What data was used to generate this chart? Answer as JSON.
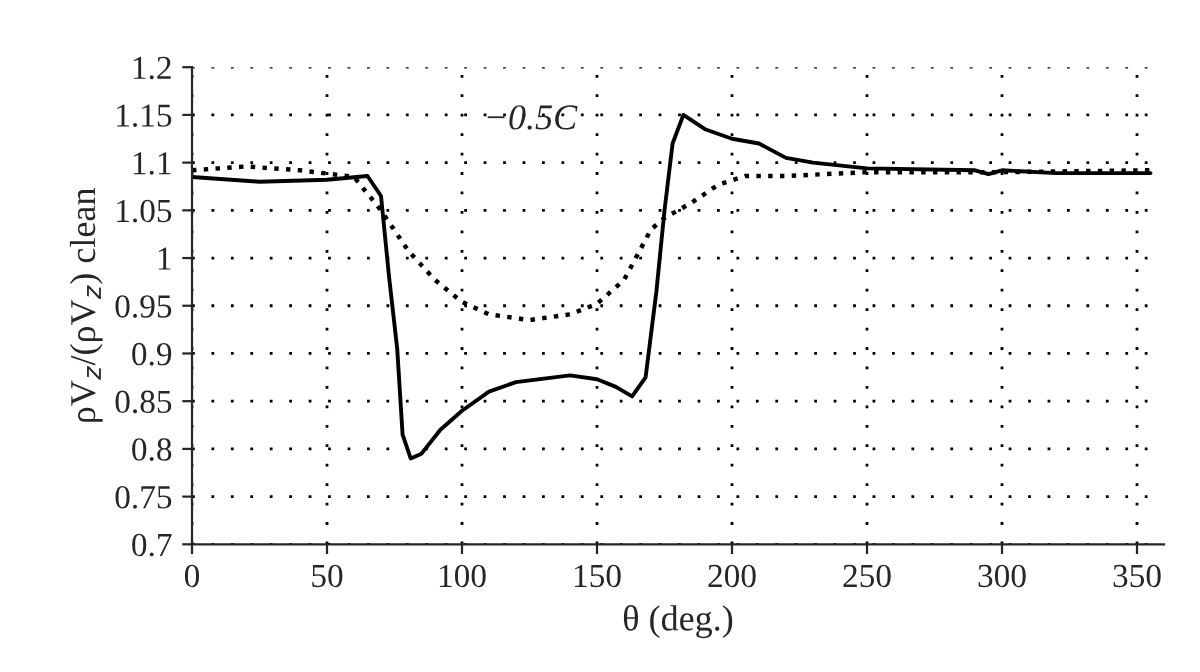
{
  "chart_data": {
    "type": "line",
    "xlabel": "θ (deg.)",
    "ylabel": "ρV$_{z}$/(ρV$_{z}$) clean",
    "annotations": [
      "−0.5C"
    ],
    "xlim": [
      0,
      360
    ],
    "xticks": [
      0,
      50,
      100,
      150,
      200,
      250,
      300,
      350
    ],
    "ylim": [
      0.7,
      1.2
    ],
    "yticks": [
      0.7,
      0.75,
      0.8,
      0.85,
      0.9,
      0.95,
      1,
      1.05,
      1.1,
      1.15,
      1.2
    ],
    "grid": true,
    "legend": false,
    "marker": "none",
    "series": [
      {
        "color": "#000000",
        "line_style": "solid",
        "x": [
          0,
          25,
          50,
          65,
          70,
          73,
          76,
          78,
          81,
          85,
          92,
          100,
          110,
          120,
          140,
          150,
          157,
          163,
          168,
          172,
          175,
          178,
          182,
          190,
          200,
          210,
          220,
          230,
          250,
          290,
          295,
          300,
          320,
          355
        ],
        "values": [
          1.085,
          1.08,
          1.082,
          1.086,
          1.065,
          0.98,
          0.905,
          0.815,
          0.79,
          0.795,
          0.82,
          0.84,
          0.86,
          0.87,
          0.877,
          0.873,
          0.865,
          0.855,
          0.875,
          0.965,
          1.05,
          1.12,
          1.15,
          1.135,
          1.125,
          1.12,
          1.105,
          1.1,
          1.094,
          1.092,
          1.088,
          1.092,
          1.089,
          1.089
        ]
      },
      {
        "color": "#000000",
        "line_style": "dotted",
        "x": [
          0,
          20,
          40,
          60,
          70,
          80,
          90,
          100,
          110,
          125,
          140,
          150,
          160,
          170,
          175,
          185,
          195,
          205,
          220,
          250,
          300,
          355
        ],
        "values": [
          1.092,
          1.096,
          1.092,
          1.085,
          1.05,
          1.008,
          0.977,
          0.954,
          0.941,
          0.935,
          0.941,
          0.952,
          0.977,
          1.03,
          1.042,
          1.058,
          1.077,
          1.086,
          1.086,
          1.09,
          1.09,
          1.092
        ]
      }
    ]
  }
}
